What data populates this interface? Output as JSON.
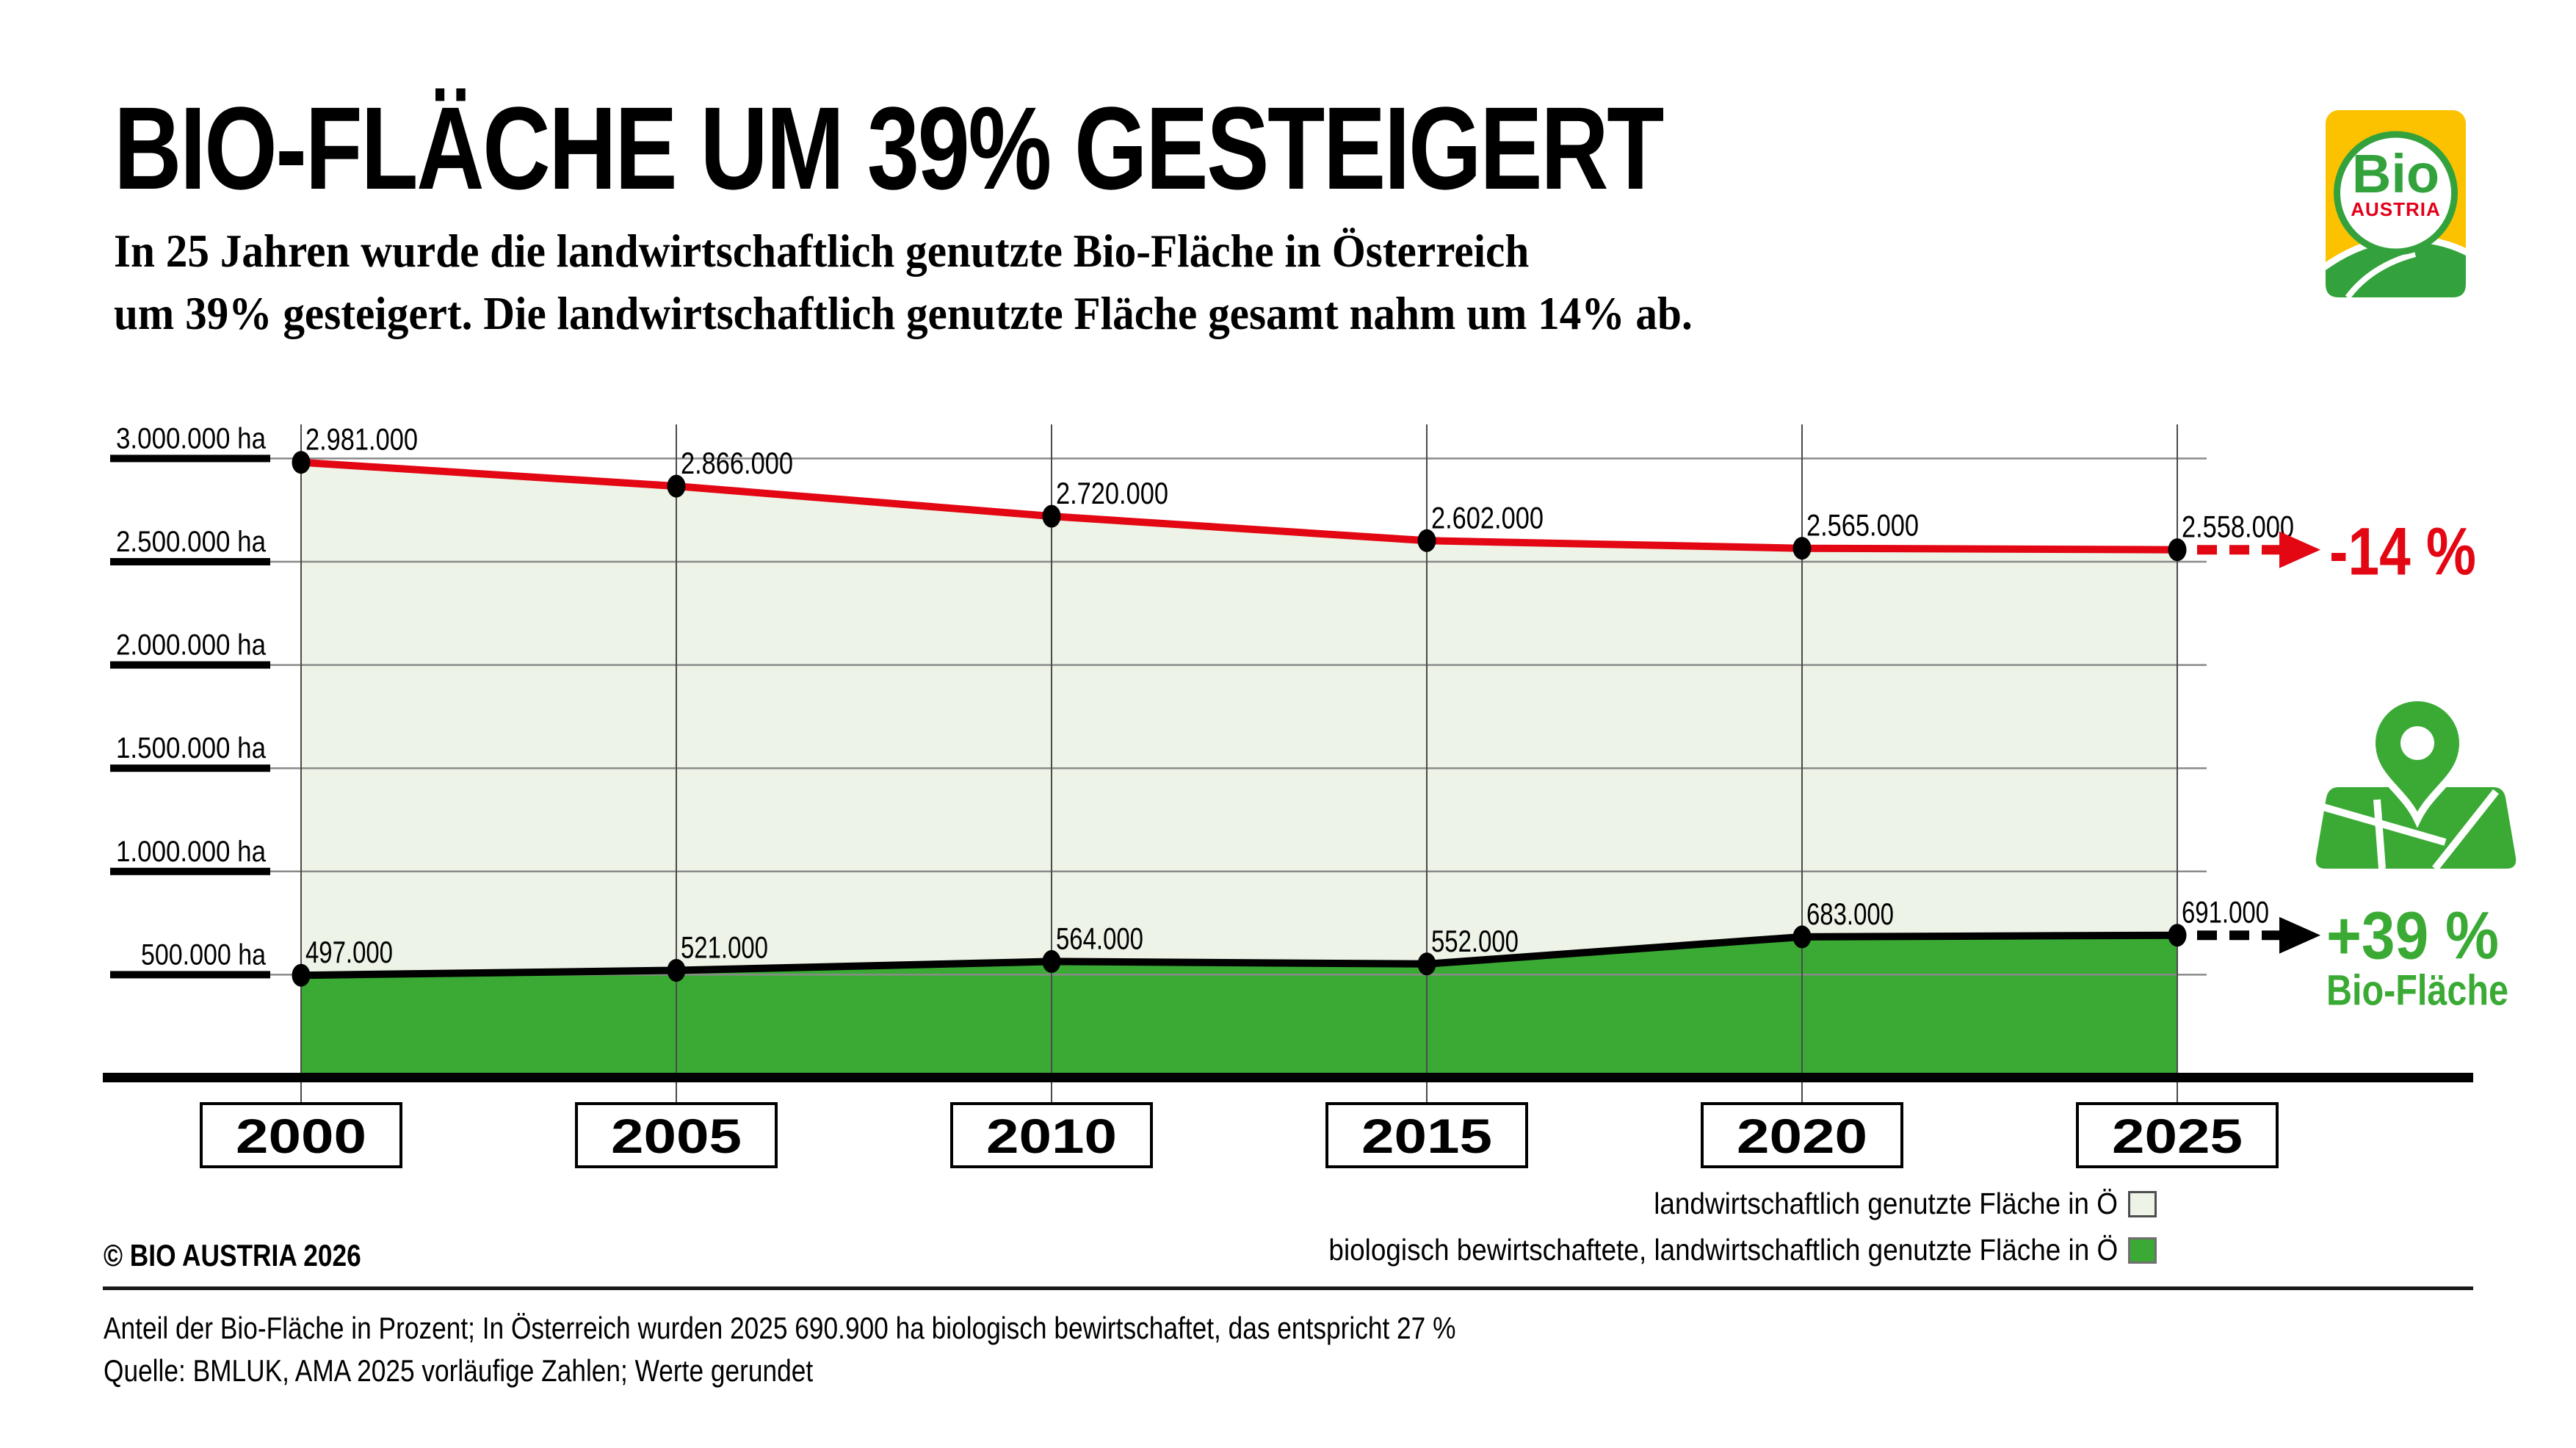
{
  "header": {
    "title": "BIO-FLÄCHE UM 39% GESTEIGERT",
    "subtitle_line1": "In 25 Jahren wurde die landwirtschaftlich genutzte Bio-Fläche in Österreich",
    "subtitle_line2": "um 39% gesteigert. Die landwirtschaftlich genutzte Fläche gesamt nahm um 14% ab."
  },
  "logo": {
    "word": "Bio",
    "subword": "AUSTRIA",
    "yellow": "#fcc200",
    "green": "#33a23d",
    "red": "#e2001a"
  },
  "chart_data": {
    "type": "area",
    "x": [
      2000,
      2005,
      2010,
      2015,
      2020,
      2025
    ],
    "x_labels": [
      "2000",
      "2005",
      "2010",
      "2015",
      "2020",
      "2025"
    ],
    "ylim": [
      0,
      3100000
    ],
    "grid": true,
    "y_ticks": [
      {
        "value": 3000000,
        "label": "3.000.000 ha"
      },
      {
        "value": 2500000,
        "label": "2.500.000 ha"
      },
      {
        "value": 2000000,
        "label": "2.000.000 ha"
      },
      {
        "value": 1500000,
        "label": "1.500.000 ha"
      },
      {
        "value": 1000000,
        "label": "1.000.000 ha"
      },
      {
        "value": 500000,
        "label": "500.000 ha"
      }
    ],
    "series": [
      {
        "name": "landwirtschaftlich genutzte Fläche in Ö",
        "values": [
          2981000,
          2866000,
          2720000,
          2602000,
          2565000,
          2558000
        ],
        "point_labels": [
          "2.981.000",
          "2.866.000",
          "2.720.000",
          "2.602.000",
          "2.565.000",
          "2.558.000"
        ],
        "fill_color": "#edf3e6",
        "line_color": "#e30613"
      },
      {
        "name": "biologisch bewirtschaftete, landwirtschaftlich genutzte Fläche in Ö",
        "values": [
          497000,
          521000,
          564000,
          552000,
          683000,
          691000
        ],
        "point_labels": [
          "497.000",
          "521.000",
          "564.000",
          "552.000",
          "683.000",
          "691.000"
        ],
        "fill_color": "#3aaa35",
        "line_color": "#000000"
      }
    ],
    "annotations": [
      {
        "id": "agri-change",
        "text": "-14 %",
        "color": "#e30613"
      },
      {
        "id": "bio-change",
        "text": "+39 %",
        "subtext": "Bio-Fläche",
        "color": "#3aaa35"
      }
    ]
  },
  "legend": {
    "items": [
      {
        "label": "landwirtschaftlich genutzte Fläche in Ö",
        "color": "#edf3e6",
        "border": "#4d4d4d"
      },
      {
        "label": "biologisch bewirtschaftete, landwirtschaftlich genutzte Fläche in Ö",
        "color": "#3aaa35",
        "border": "#6f6f6f"
      }
    ]
  },
  "footer": {
    "copyright": "© BIO AUSTRIA 2026",
    "note_line1": "Anteil der Bio-Fläche in Prozent; In Österreich wurden 2025 690.900 ha biologisch bewirtschaftet, das entspricht 27 %",
    "note_line2": "Quelle: BMLUK, AMA 2025 vorläufige Zahlen; Werte gerundet"
  }
}
